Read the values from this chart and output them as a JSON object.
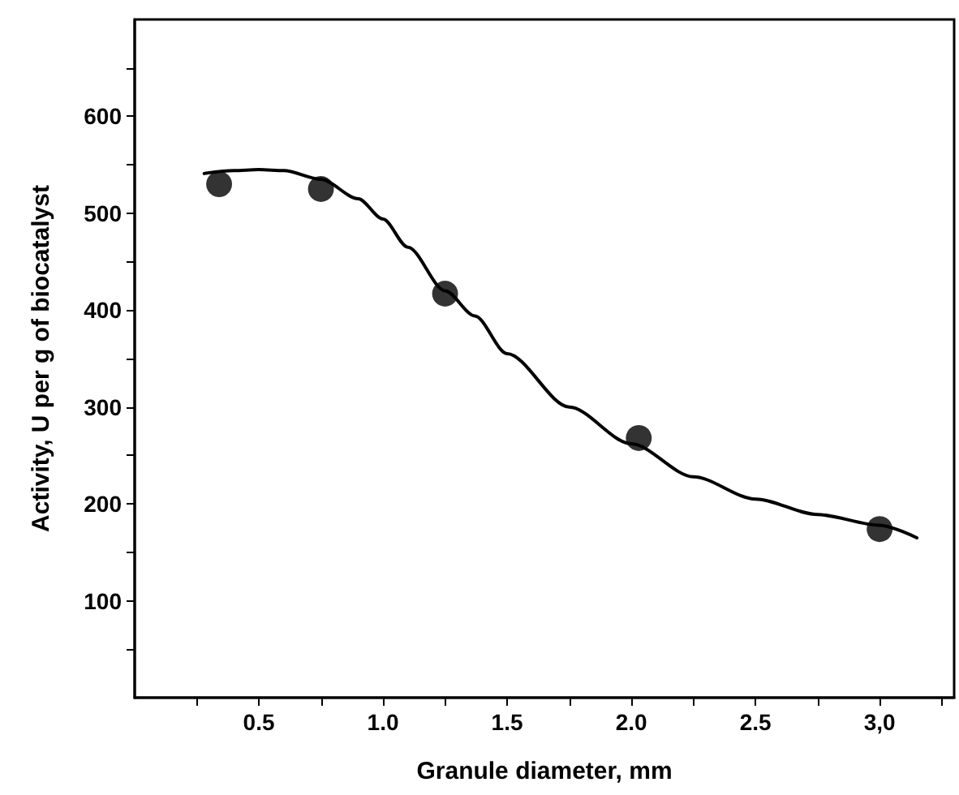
{
  "chart_data": {
    "type": "scatter",
    "xlabel": "Granule diameter, mm",
    "ylabel": "Activity, U per g of biocatalyst",
    "xlim": [
      0,
      3.3
    ],
    "ylim": [
      0,
      700
    ],
    "xticks": [
      {
        "value": 0.25,
        "label": null
      },
      0.5,
      {
        "value": 0.75,
        "label": null
      },
      {
        "value": 1,
        "label": "1.0"
      },
      {
        "value": 1.25,
        "label": null
      },
      1.5,
      {
        "value": 1.75,
        "label": null
      },
      {
        "value": 2,
        "label": "2.0"
      },
      {
        "value": 2.25,
        "label": null
      },
      2.5,
      {
        "value": 2.75,
        "label": null
      },
      {
        "value": 3,
        "label": "3,0"
      },
      {
        "value": 3.25,
        "label": null
      }
    ],
    "yticks": [
      {
        "value": 50,
        "label": null
      },
      100,
      {
        "value": 150,
        "label": null
      },
      200,
      {
        "value": 250,
        "label": null
      },
      300,
      {
        "value": 350,
        "label": null
      },
      400,
      {
        "value": 450,
        "label": null
      },
      500,
      {
        "value": 550,
        "label": null
      },
      600,
      {
        "value": 650,
        "label": null
      }
    ],
    "grid": false,
    "series": [
      {
        "color": "#000000",
        "marker": "circle",
        "x": [
          0.34,
          0.75,
          1.25,
          2.03,
          3.0
        ],
        "values": [
          530,
          525,
          417,
          268,
          174
        ]
      },
      {
        "type": "line",
        "color": "#000000",
        "marker": "none",
        "line_style": "solid",
        "x": [
          0.28,
          0.4,
          0.5,
          0.6,
          0.75,
          0.9,
          1.0,
          1.1,
          1.25,
          1.37,
          1.5,
          1.75,
          2.0,
          2.25,
          2.5,
          2.75,
          3.0,
          3.15
        ],
        "values": [
          541,
          544,
          545,
          544,
          535,
          515,
          494,
          465,
          420,
          394,
          355,
          300,
          262,
          228,
          205,
          189,
          178,
          165
        ]
      }
    ]
  }
}
